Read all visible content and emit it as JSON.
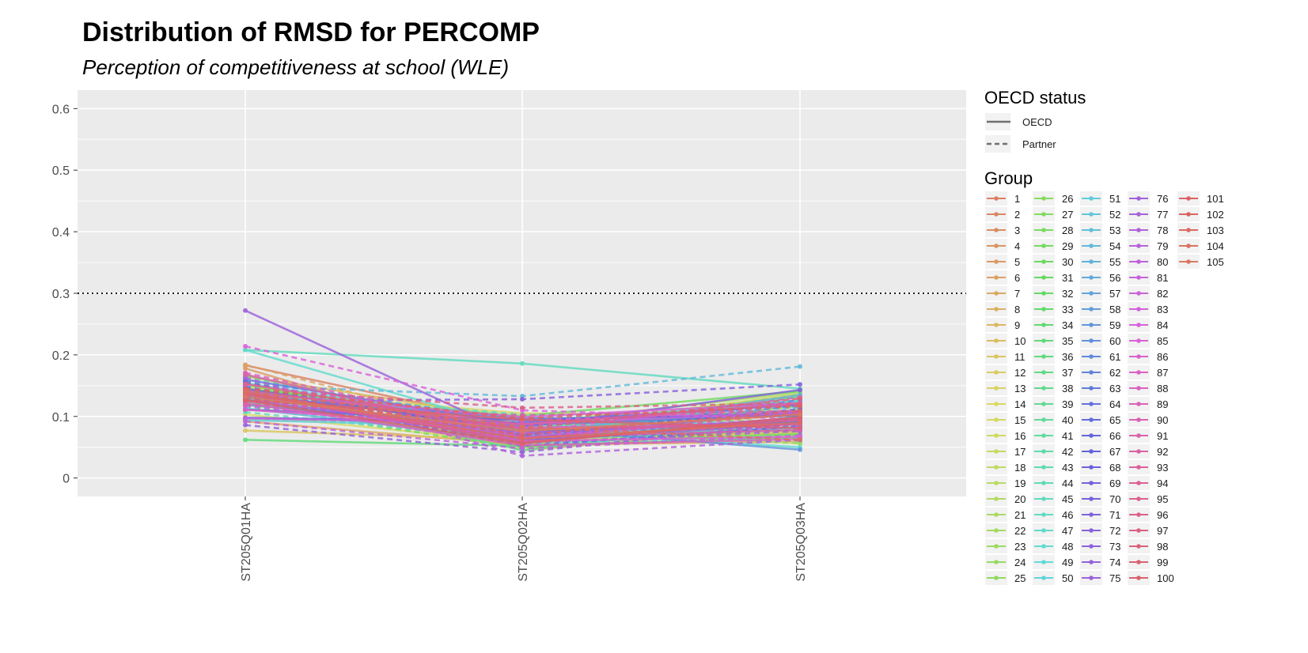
{
  "chart_data": {
    "type": "line",
    "title": "Distribution of RMSD for PERCOMP",
    "subtitle": "Perception of competitiveness at school (WLE)",
    "xlabel": "",
    "ylabel": "",
    "categories": [
      "ST205Q01HA",
      "ST205Q02HA",
      "ST205Q03HA"
    ],
    "ylim": [
      -0.03,
      0.63
    ],
    "yticks": [
      0,
      0.1,
      0.2,
      0.3,
      0.4,
      0.5,
      0.6
    ],
    "ytick_labels": [
      "0",
      "0.1",
      "0.2",
      "0.3",
      "0.4",
      "0.5",
      "0.6"
    ],
    "reference_line": {
      "y": 0.3,
      "style": "dotted"
    },
    "grid": true,
    "background": "#ebebeb",
    "legend": {
      "placement": "right",
      "linetype_title": "OECD status",
      "linetype_items": [
        {
          "label": "OECD",
          "dash": "solid"
        },
        {
          "label": "Partner",
          "dash": "dashed"
        }
      ],
      "group_title": "Group",
      "group_columns": 5,
      "group_rows": 25
    },
    "n_groups": 105,
    "series": [
      {
        "name": "1",
        "status": "OECD",
        "values": [
          0.183,
          0.086,
          0.103
        ]
      },
      {
        "name": "2",
        "status": "Partner",
        "values": [
          0.121,
          0.083,
          0.06
        ]
      },
      {
        "name": "3",
        "status": "OECD",
        "values": [
          0.131,
          0.07,
          0.127
        ]
      },
      {
        "name": "4",
        "status": "Partner",
        "values": [
          0.144,
          0.073,
          0.136
        ]
      },
      {
        "name": "5",
        "status": "OECD",
        "values": [
          0.178,
          0.045,
          0.083
        ]
      },
      {
        "name": "6",
        "status": "Partner",
        "values": [
          0.184,
          0.067,
          0.073
        ]
      },
      {
        "name": "7",
        "status": "OECD",
        "values": [
          0.092,
          0.054,
          0.059
        ]
      },
      {
        "name": "8",
        "status": "Partner",
        "values": [
          0.12,
          0.085,
          0.115
        ]
      },
      {
        "name": "9",
        "status": "OECD",
        "values": [
          0.165,
          0.095,
          0.074
        ]
      },
      {
        "name": "10",
        "status": "Partner",
        "values": [
          0.125,
          0.05,
          0.066
        ]
      },
      {
        "name": "11",
        "status": "OECD",
        "values": [
          0.077,
          0.062,
          0.073
        ]
      },
      {
        "name": "12",
        "status": "Partner",
        "values": [
          0.119,
          0.07,
          0.103
        ]
      },
      {
        "name": "13",
        "status": "OECD",
        "values": [
          0.142,
          0.105,
          0.101
        ]
      },
      {
        "name": "14",
        "status": "Partner",
        "values": [
          0.131,
          0.066,
          0.083
        ]
      },
      {
        "name": "15",
        "status": "OECD",
        "values": [
          0.103,
          0.057,
          0.098
        ]
      },
      {
        "name": "16",
        "status": "Partner",
        "values": [
          0.095,
          0.084,
          0.056
        ]
      },
      {
        "name": "17",
        "status": "OECD",
        "values": [
          0.118,
          0.078,
          0.136
        ]
      },
      {
        "name": "18",
        "status": "Partner",
        "values": [
          0.134,
          0.058,
          0.072
        ]
      },
      {
        "name": "19",
        "status": "OECD",
        "values": [
          0.149,
          0.082,
          0.133
        ]
      },
      {
        "name": "20",
        "status": "Partner",
        "values": [
          0.129,
          0.098,
          0.093
        ]
      },
      {
        "name": "21",
        "status": "OECD",
        "values": [
          0.134,
          0.087,
          0.139
        ]
      },
      {
        "name": "22",
        "status": "Partner",
        "values": [
          0.157,
          0.06,
          0.077
        ]
      },
      {
        "name": "23",
        "status": "OECD",
        "values": [
          0.153,
          0.05,
          0.068
        ]
      },
      {
        "name": "24",
        "status": "Partner",
        "values": [
          0.155,
          0.078,
          0.056
        ]
      },
      {
        "name": "25",
        "status": "OECD",
        "values": [
          0.167,
          0.07,
          0.117
        ]
      },
      {
        "name": "26",
        "status": "Partner",
        "values": [
          0.126,
          0.089,
          0.092
        ]
      },
      {
        "name": "27",
        "status": "OECD",
        "values": [
          0.152,
          0.069,
          0.081
        ]
      },
      {
        "name": "28",
        "status": "Partner",
        "values": [
          0.117,
          0.048,
          0.1
        ]
      },
      {
        "name": "29",
        "status": "OECD",
        "values": [
          0.138,
          0.101,
          0.141
        ]
      },
      {
        "name": "30",
        "status": "Partner",
        "values": [
          0.128,
          0.063,
          0.086
        ]
      },
      {
        "name": "31",
        "status": "OECD",
        "values": [
          0.143,
          0.057,
          0.071
        ]
      },
      {
        "name": "32",
        "status": "Partner",
        "values": [
          0.146,
          0.081,
          0.111
        ]
      },
      {
        "name": "33",
        "status": "OECD",
        "values": [
          0.145,
          0.093,
          0.109
        ]
      },
      {
        "name": "34",
        "status": "Partner",
        "values": [
          0.142,
          0.066,
          0.091
        ]
      },
      {
        "name": "35",
        "status": "OECD",
        "values": [
          0.062,
          0.052,
          0.066
        ]
      },
      {
        "name": "36",
        "status": "Partner",
        "values": [
          0.14,
          0.085,
          0.104
        ]
      },
      {
        "name": "37",
        "status": "OECD",
        "values": [
          0.143,
          0.062,
          0.132
        ]
      },
      {
        "name": "38",
        "status": "Partner",
        "values": [
          0.164,
          0.076,
          0.107
        ]
      },
      {
        "name": "39",
        "status": "OECD",
        "values": [
          0.146,
          0.045,
          0.096
        ]
      },
      {
        "name": "40",
        "status": "Partner",
        "values": [
          0.144,
          0.092,
          0.103
        ]
      },
      {
        "name": "41",
        "status": "OECD",
        "values": [
          0.124,
          0.063,
          0.097
        ]
      },
      {
        "name": "42",
        "status": "Partner",
        "values": [
          0.116,
          0.079,
          0.124
        ]
      },
      {
        "name": "43",
        "status": "OECD",
        "values": [
          0.131,
          0.071,
          0.125
        ]
      },
      {
        "name": "44",
        "status": "Partner",
        "values": [
          0.107,
          0.06,
          0.061
        ]
      },
      {
        "name": "45",
        "status": "OECD",
        "values": [
          0.208,
          0.186,
          0.145
        ]
      },
      {
        "name": "46",
        "status": "Partner",
        "values": [
          0.141,
          0.103,
          0.099
        ]
      },
      {
        "name": "47",
        "status": "OECD",
        "values": [
          0.208,
          0.078,
          0.05
        ]
      },
      {
        "name": "48",
        "status": "Partner",
        "values": [
          0.116,
          0.088,
          0.091
        ]
      },
      {
        "name": "49",
        "status": "OECD",
        "values": [
          0.154,
          0.087,
          0.126
        ]
      },
      {
        "name": "50",
        "status": "Partner",
        "values": [
          0.118,
          0.055,
          0.064
        ]
      },
      {
        "name": "51",
        "status": "OECD",
        "values": [
          0.094,
          0.083,
          0.09
        ]
      },
      {
        "name": "52",
        "status": "Partner",
        "values": [
          0.153,
          0.094,
          0.086
        ]
      },
      {
        "name": "53",
        "status": "OECD",
        "values": [
          0.113,
          0.061,
          0.082
        ]
      },
      {
        "name": "54",
        "status": "Partner",
        "values": [
          0.15,
          0.133,
          0.181
        ]
      },
      {
        "name": "55",
        "status": "OECD",
        "values": [
          0.127,
          0.068,
          0.135
        ]
      },
      {
        "name": "56",
        "status": "Partner",
        "values": [
          0.158,
          0.092,
          0.115
        ]
      },
      {
        "name": "57",
        "status": "OECD",
        "values": [
          0.141,
          0.057,
          0.099
        ]
      },
      {
        "name": "58",
        "status": "Partner",
        "values": [
          0.131,
          0.067,
          0.118
        ]
      },
      {
        "name": "59",
        "status": "OECD",
        "values": [
          0.119,
          0.081,
          0.046
        ]
      },
      {
        "name": "60",
        "status": "Partner",
        "values": [
          0.147,
          0.074,
          0.085
        ]
      },
      {
        "name": "61",
        "status": "OECD",
        "values": [
          0.132,
          0.097,
          0.101
        ]
      },
      {
        "name": "62",
        "status": "Partner",
        "values": [
          0.142,
          0.059,
          0.127
        ]
      },
      {
        "name": "63",
        "status": "OECD",
        "values": [
          0.16,
          0.086,
          0.102
        ]
      },
      {
        "name": "64",
        "status": "Partner",
        "values": [
          0.126,
          0.064,
          0.078
        ]
      },
      {
        "name": "65",
        "status": "OECD",
        "values": [
          0.145,
          0.075,
          0.091
        ]
      },
      {
        "name": "66",
        "status": "Partner",
        "values": [
          0.139,
          0.052,
          0.084
        ]
      },
      {
        "name": "67",
        "status": "OECD",
        "values": [
          0.111,
          0.094,
          0.105
        ]
      },
      {
        "name": "68",
        "status": "Partner",
        "values": [
          0.156,
          0.069,
          0.112
        ]
      },
      {
        "name": "69",
        "status": "OECD",
        "values": [
          0.098,
          0.09,
          0.119
        ]
      },
      {
        "name": "70",
        "status": "Partner",
        "values": [
          0.148,
          0.071,
          0.095
        ]
      },
      {
        "name": "71",
        "status": "OECD",
        "values": [
          0.136,
          0.083,
          0.143
        ]
      },
      {
        "name": "72",
        "status": "Partner",
        "values": [
          0.125,
          0.128,
          0.152
        ]
      },
      {
        "name": "73",
        "status": "OECD",
        "values": [
          0.137,
          0.061,
          0.088
        ]
      },
      {
        "name": "74",
        "status": "Partner",
        "values": [
          0.086,
          0.042,
          0.089
        ]
      },
      {
        "name": "75",
        "status": "OECD",
        "values": [
          0.272,
          0.065,
          0.108
        ]
      },
      {
        "name": "76",
        "status": "Partner",
        "values": [
          0.131,
          0.057,
          0.076
        ]
      },
      {
        "name": "77",
        "status": "OECD",
        "values": [
          0.126,
          0.073,
          0.094
        ]
      },
      {
        "name": "78",
        "status": "Partner",
        "values": [
          0.163,
          0.036,
          0.062
        ]
      },
      {
        "name": "79",
        "status": "OECD",
        "values": [
          0.139,
          0.066,
          0.098
        ]
      },
      {
        "name": "80",
        "status": "Partner",
        "values": [
          0.092,
          0.048,
          0.069
        ]
      },
      {
        "name": "81",
        "status": "OECD",
        "values": [
          0.097,
          0.088,
          0.106
        ]
      },
      {
        "name": "82",
        "status": "Partner",
        "values": [
          0.117,
          0.071,
          0.082
        ]
      },
      {
        "name": "83",
        "status": "OECD",
        "values": [
          0.138,
          0.099,
          0.122
        ]
      },
      {
        "name": "84",
        "status": "Partner",
        "values": [
          0.214,
          0.11,
          0.096
        ]
      },
      {
        "name": "85",
        "status": "OECD",
        "values": [
          0.138,
          0.06,
          0.067
        ]
      },
      {
        "name": "86",
        "status": "Partner",
        "values": [
          0.152,
          0.093,
          0.109
        ]
      },
      {
        "name": "87",
        "status": "OECD",
        "values": [
          0.111,
          0.082,
          0.087
        ]
      },
      {
        "name": "88",
        "status": "Partner",
        "values": [
          0.171,
          0.074,
          0.131
        ]
      },
      {
        "name": "89",
        "status": "OECD",
        "values": [
          0.122,
          0.053,
          0.063
        ]
      },
      {
        "name": "90",
        "status": "Partner",
        "values": [
          0.126,
          0.085,
          0.118
        ]
      },
      {
        "name": "91",
        "status": "OECD",
        "values": [
          0.168,
          0.066,
          0.078
        ]
      },
      {
        "name": "92",
        "status": "Partner",
        "values": [
          0.119,
          0.102,
          0.109
        ]
      },
      {
        "name": "93",
        "status": "OECD",
        "values": [
          0.142,
          0.087,
          0.121
        ]
      },
      {
        "name": "94",
        "status": "Partner",
        "values": [
          0.134,
          0.063,
          0.105
        ]
      },
      {
        "name": "95",
        "status": "OECD",
        "values": [
          0.153,
          0.079,
          0.087
        ]
      },
      {
        "name": "96",
        "status": "Partner",
        "values": [
          0.145,
          0.114,
          0.121
        ]
      },
      {
        "name": "97",
        "status": "OECD",
        "values": [
          0.137,
          0.058,
          0.095
        ]
      },
      {
        "name": "98",
        "status": "Partner",
        "values": [
          0.135,
          0.08,
          0.129
        ]
      },
      {
        "name": "99",
        "status": "OECD",
        "values": [
          0.127,
          0.095,
          0.081
        ]
      },
      {
        "name": "100",
        "status": "Partner",
        "values": [
          0.139,
          0.07,
          0.109
        ]
      },
      {
        "name": "101",
        "status": "OECD",
        "values": [
          0.126,
          0.056,
          0.099
        ]
      },
      {
        "name": "102",
        "status": "Partner",
        "values": [
          0.145,
          0.097,
          0.117
        ]
      },
      {
        "name": "103",
        "status": "OECD",
        "values": [
          0.139,
          0.064,
          0.09
        ]
      },
      {
        "name": "104",
        "status": "Partner",
        "values": [
          0.141,
          0.083,
          0.062
        ]
      },
      {
        "name": "105",
        "status": "OECD",
        "values": [
          0.132,
          0.076,
          0.103
        ]
      }
    ]
  }
}
